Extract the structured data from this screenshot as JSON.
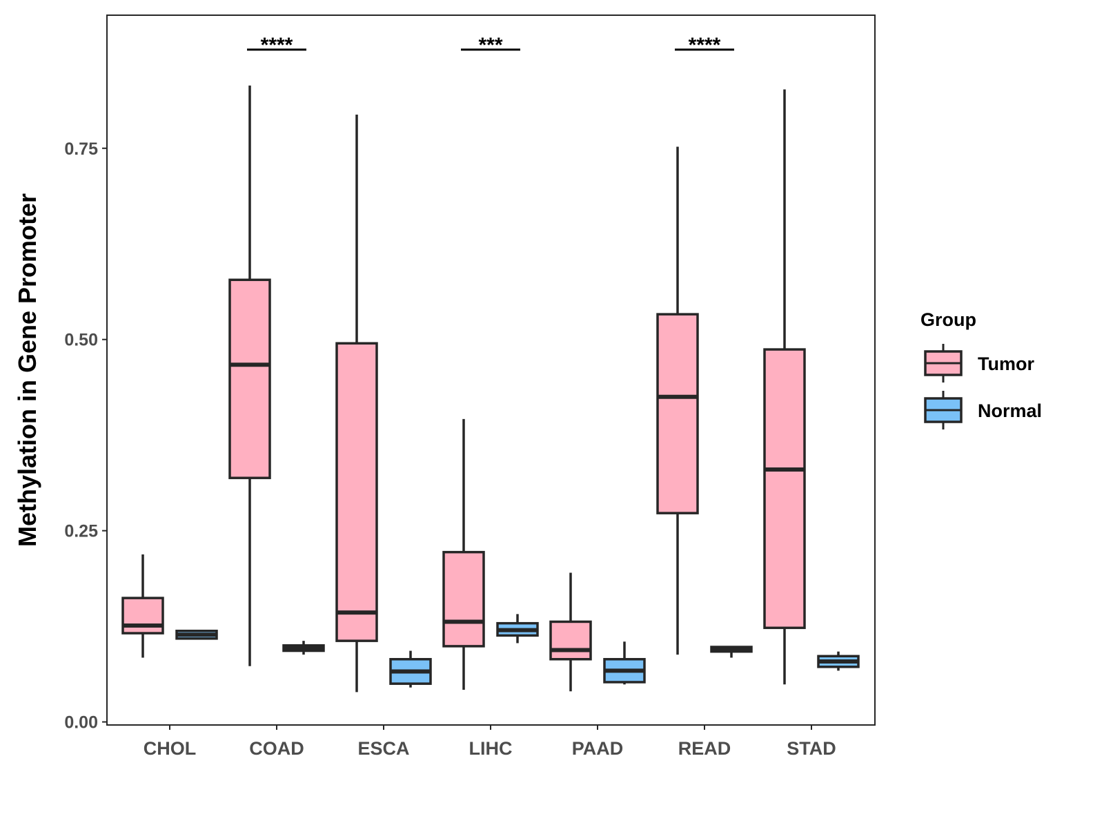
{
  "chart_data": {
    "type": "boxplot",
    "title": "",
    "xlabel": "",
    "ylabel": "Methylation in Gene Promoter",
    "ylim": [
      -0.004,
      0.924
    ],
    "yticks": [
      0.0,
      0.25,
      0.5,
      0.75
    ],
    "ytick_labels": [
      "0.00",
      "0.25",
      "0.50",
      "0.75"
    ],
    "grid": false,
    "categories": [
      "CHOL",
      "COAD",
      "ESCA",
      "LIHC",
      "PAAD",
      "READ",
      "STAD"
    ],
    "legend": {
      "title": "Group",
      "placement": "right",
      "entries": [
        "Tumor",
        "Normal"
      ]
    },
    "colors": {
      "Tumor": "#FFB0C1",
      "Normal": "#7AC1F7",
      "stroke": "#262626"
    },
    "series": [
      {
        "name": "Tumor",
        "boxes": [
          {
            "min": 0.084,
            "q1": 0.116,
            "median": 0.126,
            "q3": 0.162,
            "max": 0.219
          },
          {
            "min": 0.073,
            "q1": 0.319,
            "median": 0.467,
            "q3": 0.578,
            "max": 0.832
          },
          {
            "min": 0.039,
            "q1": 0.106,
            "median": 0.143,
            "q3": 0.495,
            "max": 0.794
          },
          {
            "min": 0.042,
            "q1": 0.099,
            "median": 0.131,
            "q3": 0.222,
            "max": 0.396
          },
          {
            "min": 0.04,
            "q1": 0.082,
            "median": 0.094,
            "q3": 0.131,
            "max": 0.195
          },
          {
            "min": 0.088,
            "q1": 0.273,
            "median": 0.425,
            "q3": 0.533,
            "max": 0.752
          },
          {
            "min": 0.049,
            "q1": 0.123,
            "median": 0.33,
            "q3": 0.487,
            "max": 0.827
          }
        ]
      },
      {
        "name": "Normal",
        "boxes": [
          {
            "min": 0.108,
            "q1": 0.109,
            "median": 0.114,
            "q3": 0.119,
            "max": 0.12
          },
          {
            "min": 0.088,
            "q1": 0.093,
            "median": 0.097,
            "q3": 0.1,
            "max": 0.106
          },
          {
            "min": 0.045,
            "q1": 0.05,
            "median": 0.066,
            "q3": 0.082,
            "max": 0.093
          },
          {
            "min": 0.103,
            "q1": 0.113,
            "median": 0.12,
            "q3": 0.129,
            "max": 0.141
          },
          {
            "min": 0.049,
            "q1": 0.052,
            "median": 0.067,
            "q3": 0.082,
            "max": 0.105
          },
          {
            "min": 0.084,
            "q1": 0.092,
            "median": 0.096,
            "q3": 0.098,
            "max": 0.099
          },
          {
            "min": 0.067,
            "q1": 0.072,
            "median": 0.079,
            "q3": 0.086,
            "max": 0.092
          }
        ]
      }
    ],
    "annotations": [
      {
        "category": "COAD",
        "label": "****",
        "y": 0.879
      },
      {
        "category": "LIHC",
        "label": "***",
        "y": 0.879
      },
      {
        "category": "READ",
        "label": "****",
        "y": 0.879
      }
    ]
  }
}
